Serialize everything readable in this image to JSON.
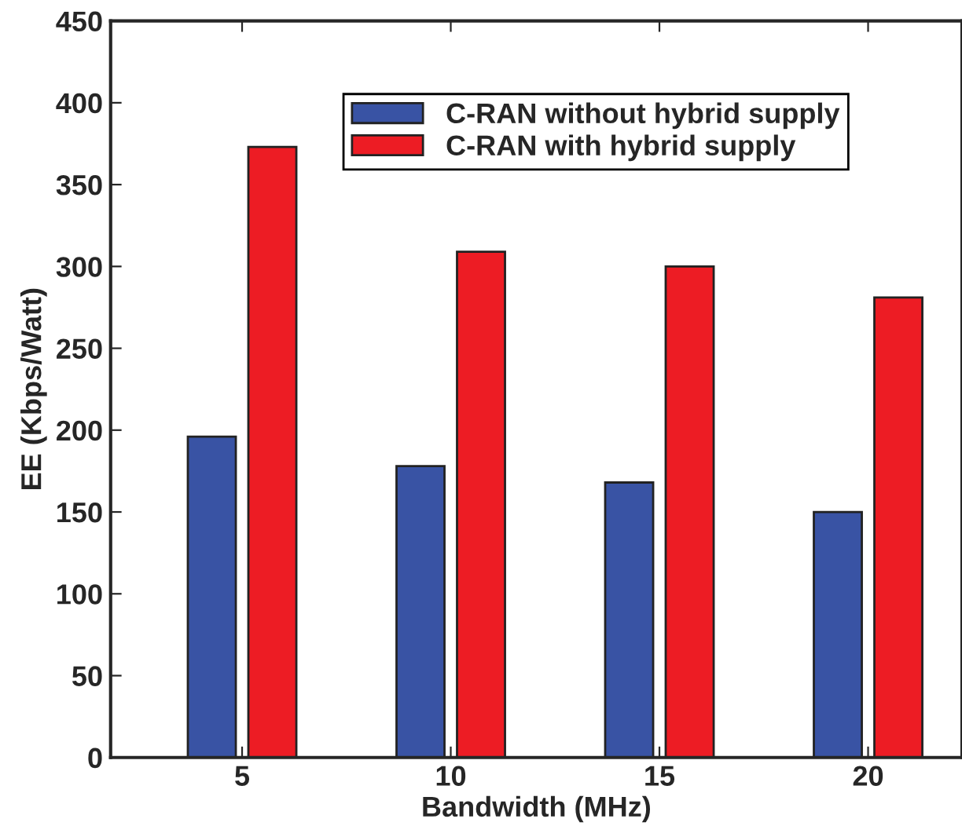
{
  "chart_data": {
    "type": "bar",
    "xlabel": "Bandwidth (MHz)",
    "ylabel": "EE (Kbps/Watt)",
    "categories": [
      "5",
      "10",
      "15",
      "20"
    ],
    "series": [
      {
        "name": "C-RAN without hybrid supply",
        "color": "#3953a4",
        "values": [
          196,
          178,
          168,
          150
        ]
      },
      {
        "name": "C-RAN with hybrid supply",
        "color": "#ed1c24",
        "values": [
          373,
          309,
          300,
          281
        ]
      }
    ],
    "ylim": [
      0,
      450
    ],
    "yticks": [
      0,
      50,
      100,
      150,
      200,
      250,
      300,
      350,
      400,
      450
    ],
    "grid": false,
    "legend": "top"
  }
}
